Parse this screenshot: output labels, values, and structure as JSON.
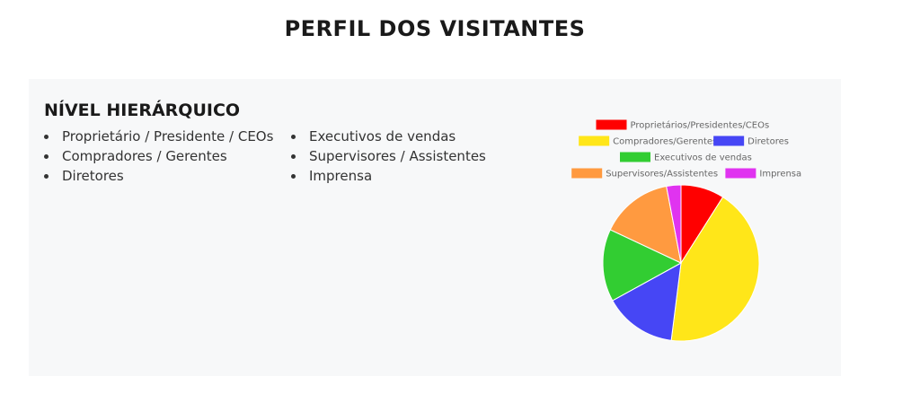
{
  "page": {
    "title": "PERFIL DOS VISITANTES"
  },
  "section": {
    "title": "NÍVEL HIERÁRQUICO",
    "list_left": [
      "Proprietário / Presidente / CEOs",
      "Compradores / Gerentes",
      "Diretores"
    ],
    "list_right": [
      "Executivos de vendas",
      "Supervisores / Assistentes",
      "Imprensa"
    ]
  },
  "chart_data": {
    "type": "pie",
    "title": "",
    "legend_position": "top",
    "labels": [
      "Proprietários/Presidentes/CEOs",
      "Compradores/Gerentes",
      "Diretores",
      "Executivos de vendas",
      "Supervisores/Assistentes",
      "Imprensa"
    ],
    "values": [
      9,
      43,
      15,
      15,
      15,
      3
    ],
    "colors": [
      "#ff0000",
      "#ffe619",
      "#4646f5",
      "#32cd32",
      "#ff9a40",
      "#e033f0"
    ]
  }
}
